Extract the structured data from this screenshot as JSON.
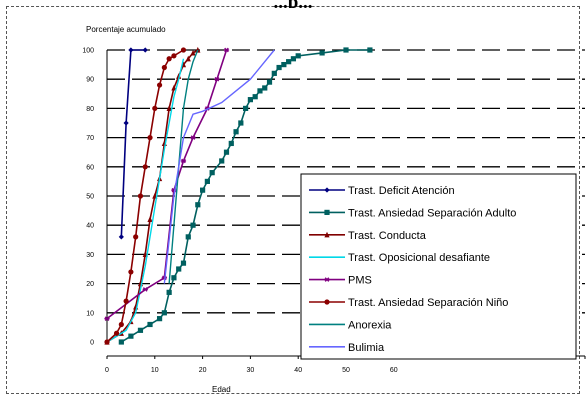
{
  "heading": "...p...",
  "chart_data": {
    "type": "line",
    "title": "",
    "ylabel": "Porcentaje acumulado",
    "xlabel": "Edad",
    "xlim": [
      0,
      100
    ],
    "ylim": [
      0,
      100
    ],
    "xticks": [
      0,
      10,
      20,
      30,
      40,
      50,
      60
    ],
    "yticks": [
      0,
      10,
      20,
      30,
      40,
      50,
      60,
      70,
      80,
      90,
      100
    ],
    "grid": "horizontal-dashed",
    "legend_position": "right",
    "series": [
      {
        "name": "Trast. Deficit Atención",
        "color": "#000080",
        "marker": "diamond",
        "points": [
          [
            3,
            36
          ],
          [
            4,
            75
          ],
          [
            5,
            100
          ],
          [
            8,
            100
          ]
        ]
      },
      {
        "name": "Trast. Ansiedad Separación Adulto",
        "color": "#006060",
        "marker": "square",
        "points": [
          [
            3,
            0
          ],
          [
            5,
            2
          ],
          [
            7,
            4
          ],
          [
            9,
            6
          ],
          [
            11,
            8
          ],
          [
            12,
            10
          ],
          [
            13,
            17
          ],
          [
            14,
            22
          ],
          [
            15,
            25
          ],
          [
            16,
            27
          ],
          [
            17,
            36
          ],
          [
            18,
            40
          ],
          [
            19,
            47
          ],
          [
            20,
            52
          ],
          [
            21,
            55
          ],
          [
            22,
            58
          ],
          [
            24,
            62
          ],
          [
            25,
            65
          ],
          [
            26,
            68
          ],
          [
            27,
            72
          ],
          [
            28,
            75
          ],
          [
            29,
            80
          ],
          [
            30,
            83
          ],
          [
            31,
            84
          ],
          [
            32,
            86
          ],
          [
            33,
            87
          ],
          [
            34,
            89
          ],
          [
            35,
            92
          ],
          [
            36,
            94
          ],
          [
            37,
            95
          ],
          [
            38,
            96
          ],
          [
            39,
            97
          ],
          [
            40,
            98
          ],
          [
            45,
            99
          ],
          [
            50,
            100
          ],
          [
            55,
            100
          ]
        ]
      },
      {
        "name": "Trast. Conducta",
        "color": "#800000",
        "marker": "triangle",
        "points": [
          [
            0,
            0
          ],
          [
            3,
            3
          ],
          [
            5,
            7
          ],
          [
            6,
            12
          ],
          [
            7,
            20
          ],
          [
            8,
            30
          ],
          [
            9,
            42
          ],
          [
            10,
            50
          ],
          [
            11,
            56
          ],
          [
            12,
            68
          ],
          [
            13,
            80
          ],
          [
            14,
            87
          ],
          [
            15,
            91
          ],
          [
            16,
            95
          ],
          [
            17,
            97
          ],
          [
            18,
            99
          ],
          [
            19,
            100
          ]
        ]
      },
      {
        "name": "Trast. Oposicional desafiante",
        "color": "#00d8e8",
        "marker": "none",
        "points": [
          [
            0,
            0
          ],
          [
            4,
            4
          ],
          [
            6,
            10
          ],
          [
            7,
            18
          ],
          [
            8,
            26
          ],
          [
            9,
            36
          ],
          [
            10,
            46
          ],
          [
            11,
            56
          ],
          [
            12,
            66
          ],
          [
            13,
            75
          ],
          [
            14,
            84
          ],
          [
            15,
            90
          ],
          [
            16,
            97
          ]
        ]
      },
      {
        "name": "PMS",
        "color": "#800080",
        "marker": "star",
        "points": [
          [
            0,
            8
          ],
          [
            8,
            18
          ],
          [
            12,
            22
          ],
          [
            14,
            52
          ],
          [
            16,
            62
          ],
          [
            18,
            70
          ],
          [
            21,
            80
          ],
          [
            23,
            90
          ],
          [
            25,
            100
          ]
        ]
      },
      {
        "name": "Trast. Ansiedad Separación Niño",
        "color": "#8b0000",
        "marker": "circle",
        "points": [
          [
            0,
            0
          ],
          [
            2,
            3
          ],
          [
            3,
            6
          ],
          [
            4,
            14
          ],
          [
            5,
            24
          ],
          [
            6,
            36
          ],
          [
            7,
            50
          ],
          [
            8,
            60
          ],
          [
            9,
            70
          ],
          [
            10,
            80
          ],
          [
            11,
            88
          ],
          [
            12,
            94
          ],
          [
            13,
            97
          ],
          [
            14,
            98
          ],
          [
            16,
            100
          ]
        ]
      },
      {
        "name": "Anorexia",
        "color": "#008080",
        "marker": "none",
        "points": [
          [
            13,
            20
          ],
          [
            14,
            40
          ],
          [
            15,
            60
          ],
          [
            16,
            80
          ],
          [
            17,
            90
          ],
          [
            18,
            96
          ],
          [
            19,
            100
          ]
        ]
      },
      {
        "name": "Bulimia",
        "color": "#6666ff",
        "marker": "none",
        "points": [
          [
            12,
            20
          ],
          [
            14,
            50
          ],
          [
            16,
            70
          ],
          [
            18,
            78
          ],
          [
            20,
            79
          ],
          [
            24,
            82
          ],
          [
            30,
            90
          ],
          [
            35,
            100
          ]
        ]
      }
    ]
  }
}
